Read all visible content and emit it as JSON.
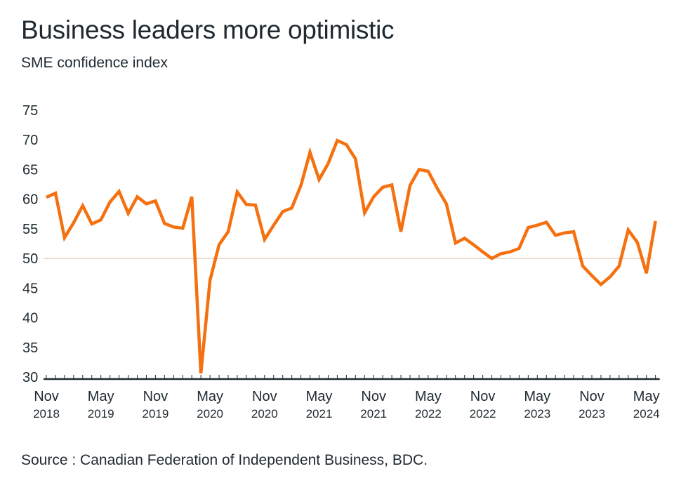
{
  "chart_data": {
    "type": "line",
    "title": "Business leaders more optimistic",
    "subtitle": "SME confidence index",
    "source": "Source : Canadian Federation of Independent Business, BDC.",
    "ylim": [
      30,
      75
    ],
    "yticks": [
      30,
      35,
      40,
      45,
      50,
      55,
      60,
      65,
      70,
      75
    ],
    "reference_line": 50,
    "grid": false,
    "x_start": "Nov 2018",
    "x_ticks": [
      {
        "month": "Nov",
        "year": "2018",
        "index": 0
      },
      {
        "month": "May",
        "year": "2019",
        "index": 6
      },
      {
        "month": "Nov",
        "year": "2019",
        "index": 12
      },
      {
        "month": "May",
        "year": "2020",
        "index": 18
      },
      {
        "month": "Nov",
        "year": "2020",
        "index": 24
      },
      {
        "month": "May",
        "year": "2021",
        "index": 30
      },
      {
        "month": "Nov",
        "year": "2021",
        "index": 36
      },
      {
        "month": "May",
        "year": "2022",
        "index": 42
      },
      {
        "month": "Nov",
        "year": "2022",
        "index": 48
      },
      {
        "month": "May",
        "year": "2023",
        "index": 54
      },
      {
        "month": "Nov",
        "year": "2023",
        "index": 60
      },
      {
        "month": "May",
        "year": "2024",
        "index": 66
      }
    ],
    "series": [
      {
        "color": "#f5700f",
        "values": [
          60.3,
          61.0,
          53.5,
          56.0,
          58.9,
          55.8,
          56.5,
          59.5,
          61.3,
          57.6,
          60.4,
          59.2,
          59.7,
          55.9,
          55.3,
          55.1,
          60.4,
          30.6,
          46.3,
          52.3,
          54.5,
          61.2,
          59.1,
          59.0,
          53.2,
          55.6,
          57.9,
          58.5,
          62.3,
          67.9,
          63.3,
          66.0,
          69.9,
          69.2,
          66.8,
          57.7,
          60.4,
          62.0,
          62.4,
          54.5,
          62.3,
          65.0,
          64.7,
          61.8,
          59.2,
          52.6,
          53.4,
          52.3,
          51.1,
          50.0,
          50.8,
          51.1,
          51.7,
          55.2,
          55.6,
          56.1,
          53.9,
          54.3,
          54.5,
          48.7,
          47.1,
          45.6,
          46.9,
          48.7,
          54.8,
          52.7,
          47.5,
          56.3
        ]
      }
    ]
  }
}
